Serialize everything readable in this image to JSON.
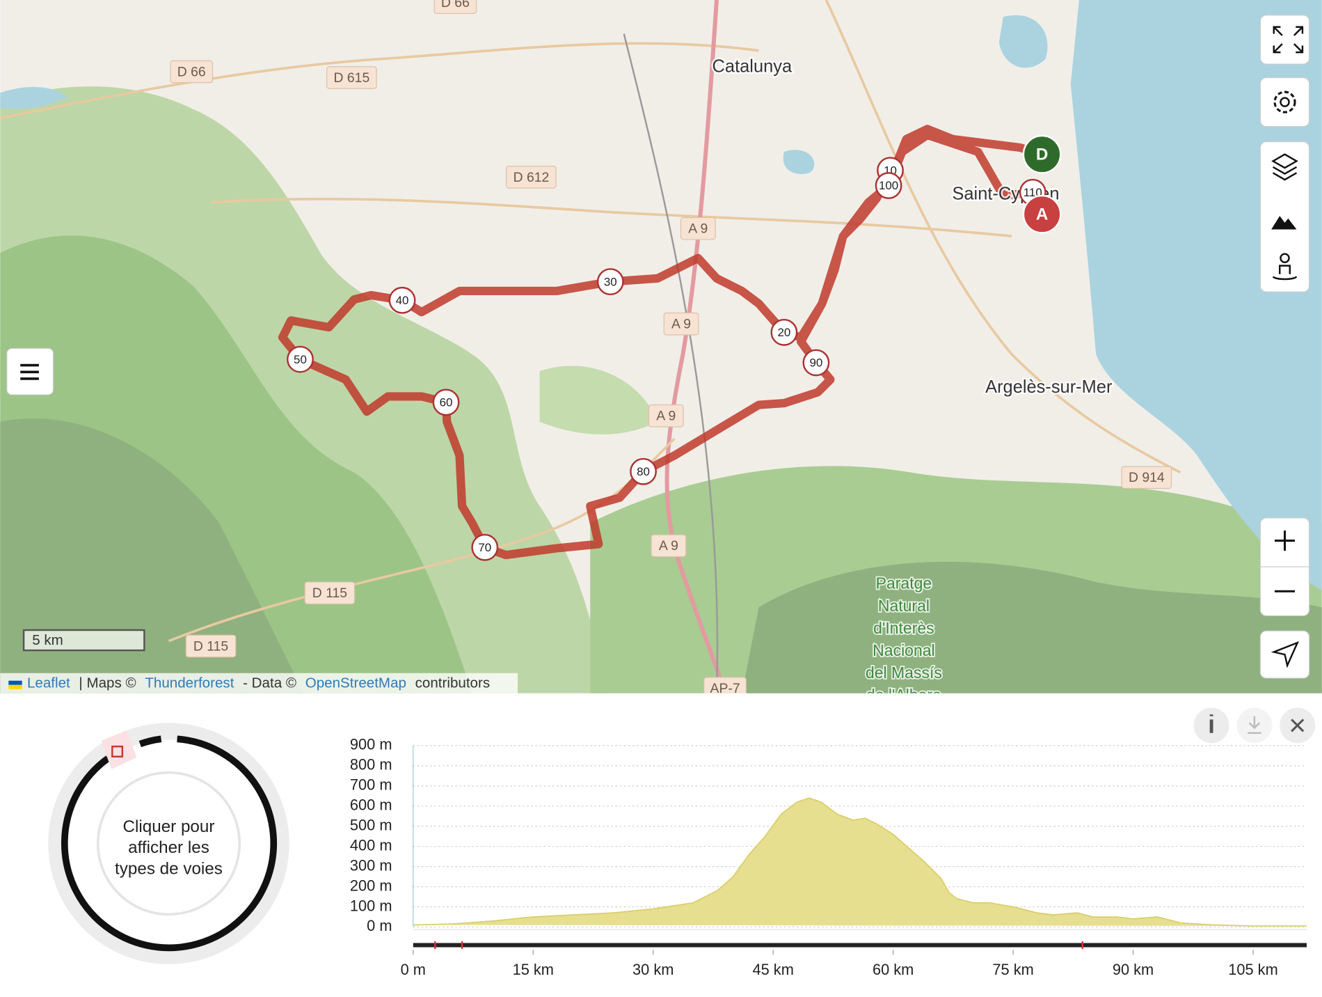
{
  "map": {
    "labels": [
      "D 66",
      "D 66",
      "D 615",
      "Catalunya",
      "D 612",
      "A 9",
      "A 9",
      "A 9",
      "A 9",
      "D 115",
      "D 115",
      "D 914",
      "Saint-Cyprien",
      "Argelès-sur-Mer",
      "AP-7"
    ],
    "park_label": [
      "Paratge",
      "Natural",
      "d'Interès",
      "Nacional",
      "del Massís",
      "de l'Albera"
    ],
    "route_markers": [
      10,
      100,
      110,
      20,
      30,
      40,
      50,
      60,
      70,
      80,
      90
    ],
    "start_marker": "D",
    "end_marker": "A",
    "scale": "5 km",
    "attribution": [
      "Leaflet",
      "| Maps ©",
      "Thunderforest",
      "- Data ©",
      "OpenStreetMap",
      "contributors"
    ]
  },
  "road_type_panel": {
    "lines": [
      "Cliquer pour",
      "afficher les",
      "types de voies"
    ]
  },
  "elevation_profile": {
    "type": "area",
    "color": "#e6df8f",
    "line_color": "#d9cf6e",
    "distance_km": [
      0,
      5,
      10,
      15,
      20,
      25,
      30,
      35,
      38,
      40,
      42,
      44,
      46,
      48,
      49.5,
      51,
      53,
      55,
      56.5,
      58,
      60,
      62,
      64,
      66,
      67,
      68,
      70,
      72,
      75,
      78,
      80,
      83,
      85,
      88,
      90,
      93,
      96,
      100,
      105,
      111.7
    ],
    "elevation_m": [
      10,
      15,
      30,
      50,
      60,
      70,
      90,
      120,
      180,
      250,
      360,
      450,
      560,
      620,
      640,
      620,
      560,
      530,
      540,
      510,
      460,
      390,
      320,
      240,
      170,
      140,
      120,
      120,
      100,
      70,
      60,
      70,
      50,
      50,
      40,
      50,
      20,
      10,
      5,
      5
    ],
    "xlim": [
      0,
      111.7
    ],
    "ylim": [
      0,
      900
    ],
    "grid": true,
    "xticks": [
      {
        "value": 0,
        "label": "0 m"
      },
      {
        "value": 15,
        "label": "15 km"
      },
      {
        "value": 30,
        "label": "30 km"
      },
      {
        "value": 45,
        "label": "45 km"
      },
      {
        "value": 60,
        "label": "60 km"
      },
      {
        "value": 75,
        "label": "75 km"
      },
      {
        "value": 90,
        "label": "90 km"
      },
      {
        "value": 105,
        "label": "105 km"
      }
    ],
    "yticks": [
      {
        "value": 0,
        "label": "0 m"
      },
      {
        "value": 100,
        "label": "100 m"
      },
      {
        "value": 200,
        "label": "200 m"
      },
      {
        "value": 300,
        "label": "300 m"
      },
      {
        "value": 400,
        "label": "400 m"
      },
      {
        "value": 500,
        "label": "500 m"
      },
      {
        "value": 600,
        "label": "600 m"
      },
      {
        "value": 700,
        "label": "700 m"
      },
      {
        "value": 800,
        "label": "800 m"
      },
      {
        "value": 900,
        "label": "900 m"
      }
    ]
  }
}
